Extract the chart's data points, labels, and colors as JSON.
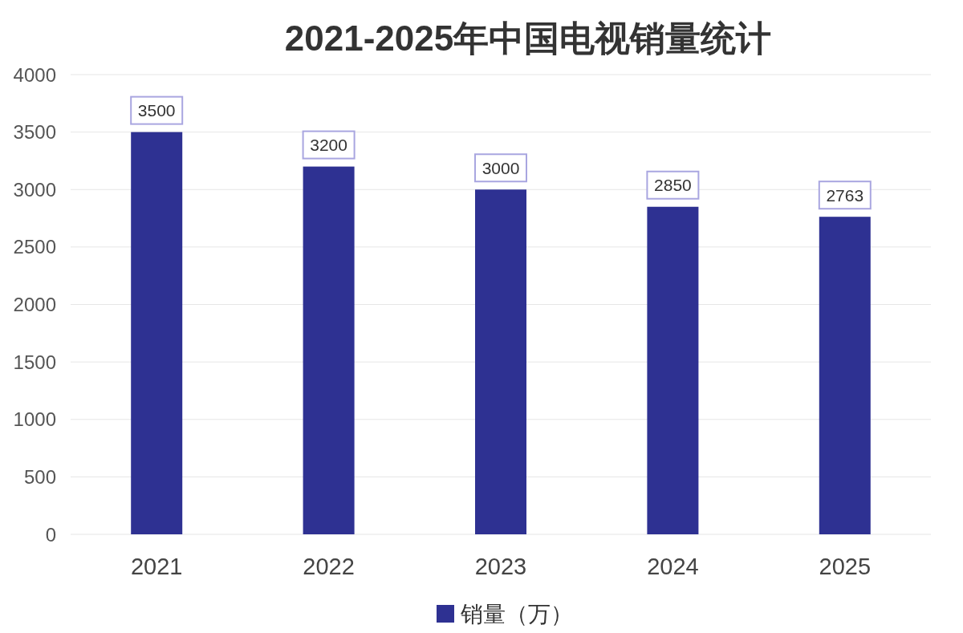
{
  "chart_data": {
    "type": "bar",
    "title": "2021-2025年中国电视销量统计",
    "categories": [
      "2021",
      "2022",
      "2023",
      "2024",
      "2025"
    ],
    "series": [
      {
        "name": "销量（万）",
        "color": "#2e3192",
        "values": [
          3500,
          3200,
          3000,
          2850,
          2763
        ]
      }
    ],
    "ylim": [
      0,
      4000
    ],
    "yticks": [
      0,
      500,
      1000,
      1500,
      2000,
      2500,
      3000,
      3500,
      4000
    ],
    "grid": "y",
    "legend": "bottom",
    "data_labels": true
  }
}
